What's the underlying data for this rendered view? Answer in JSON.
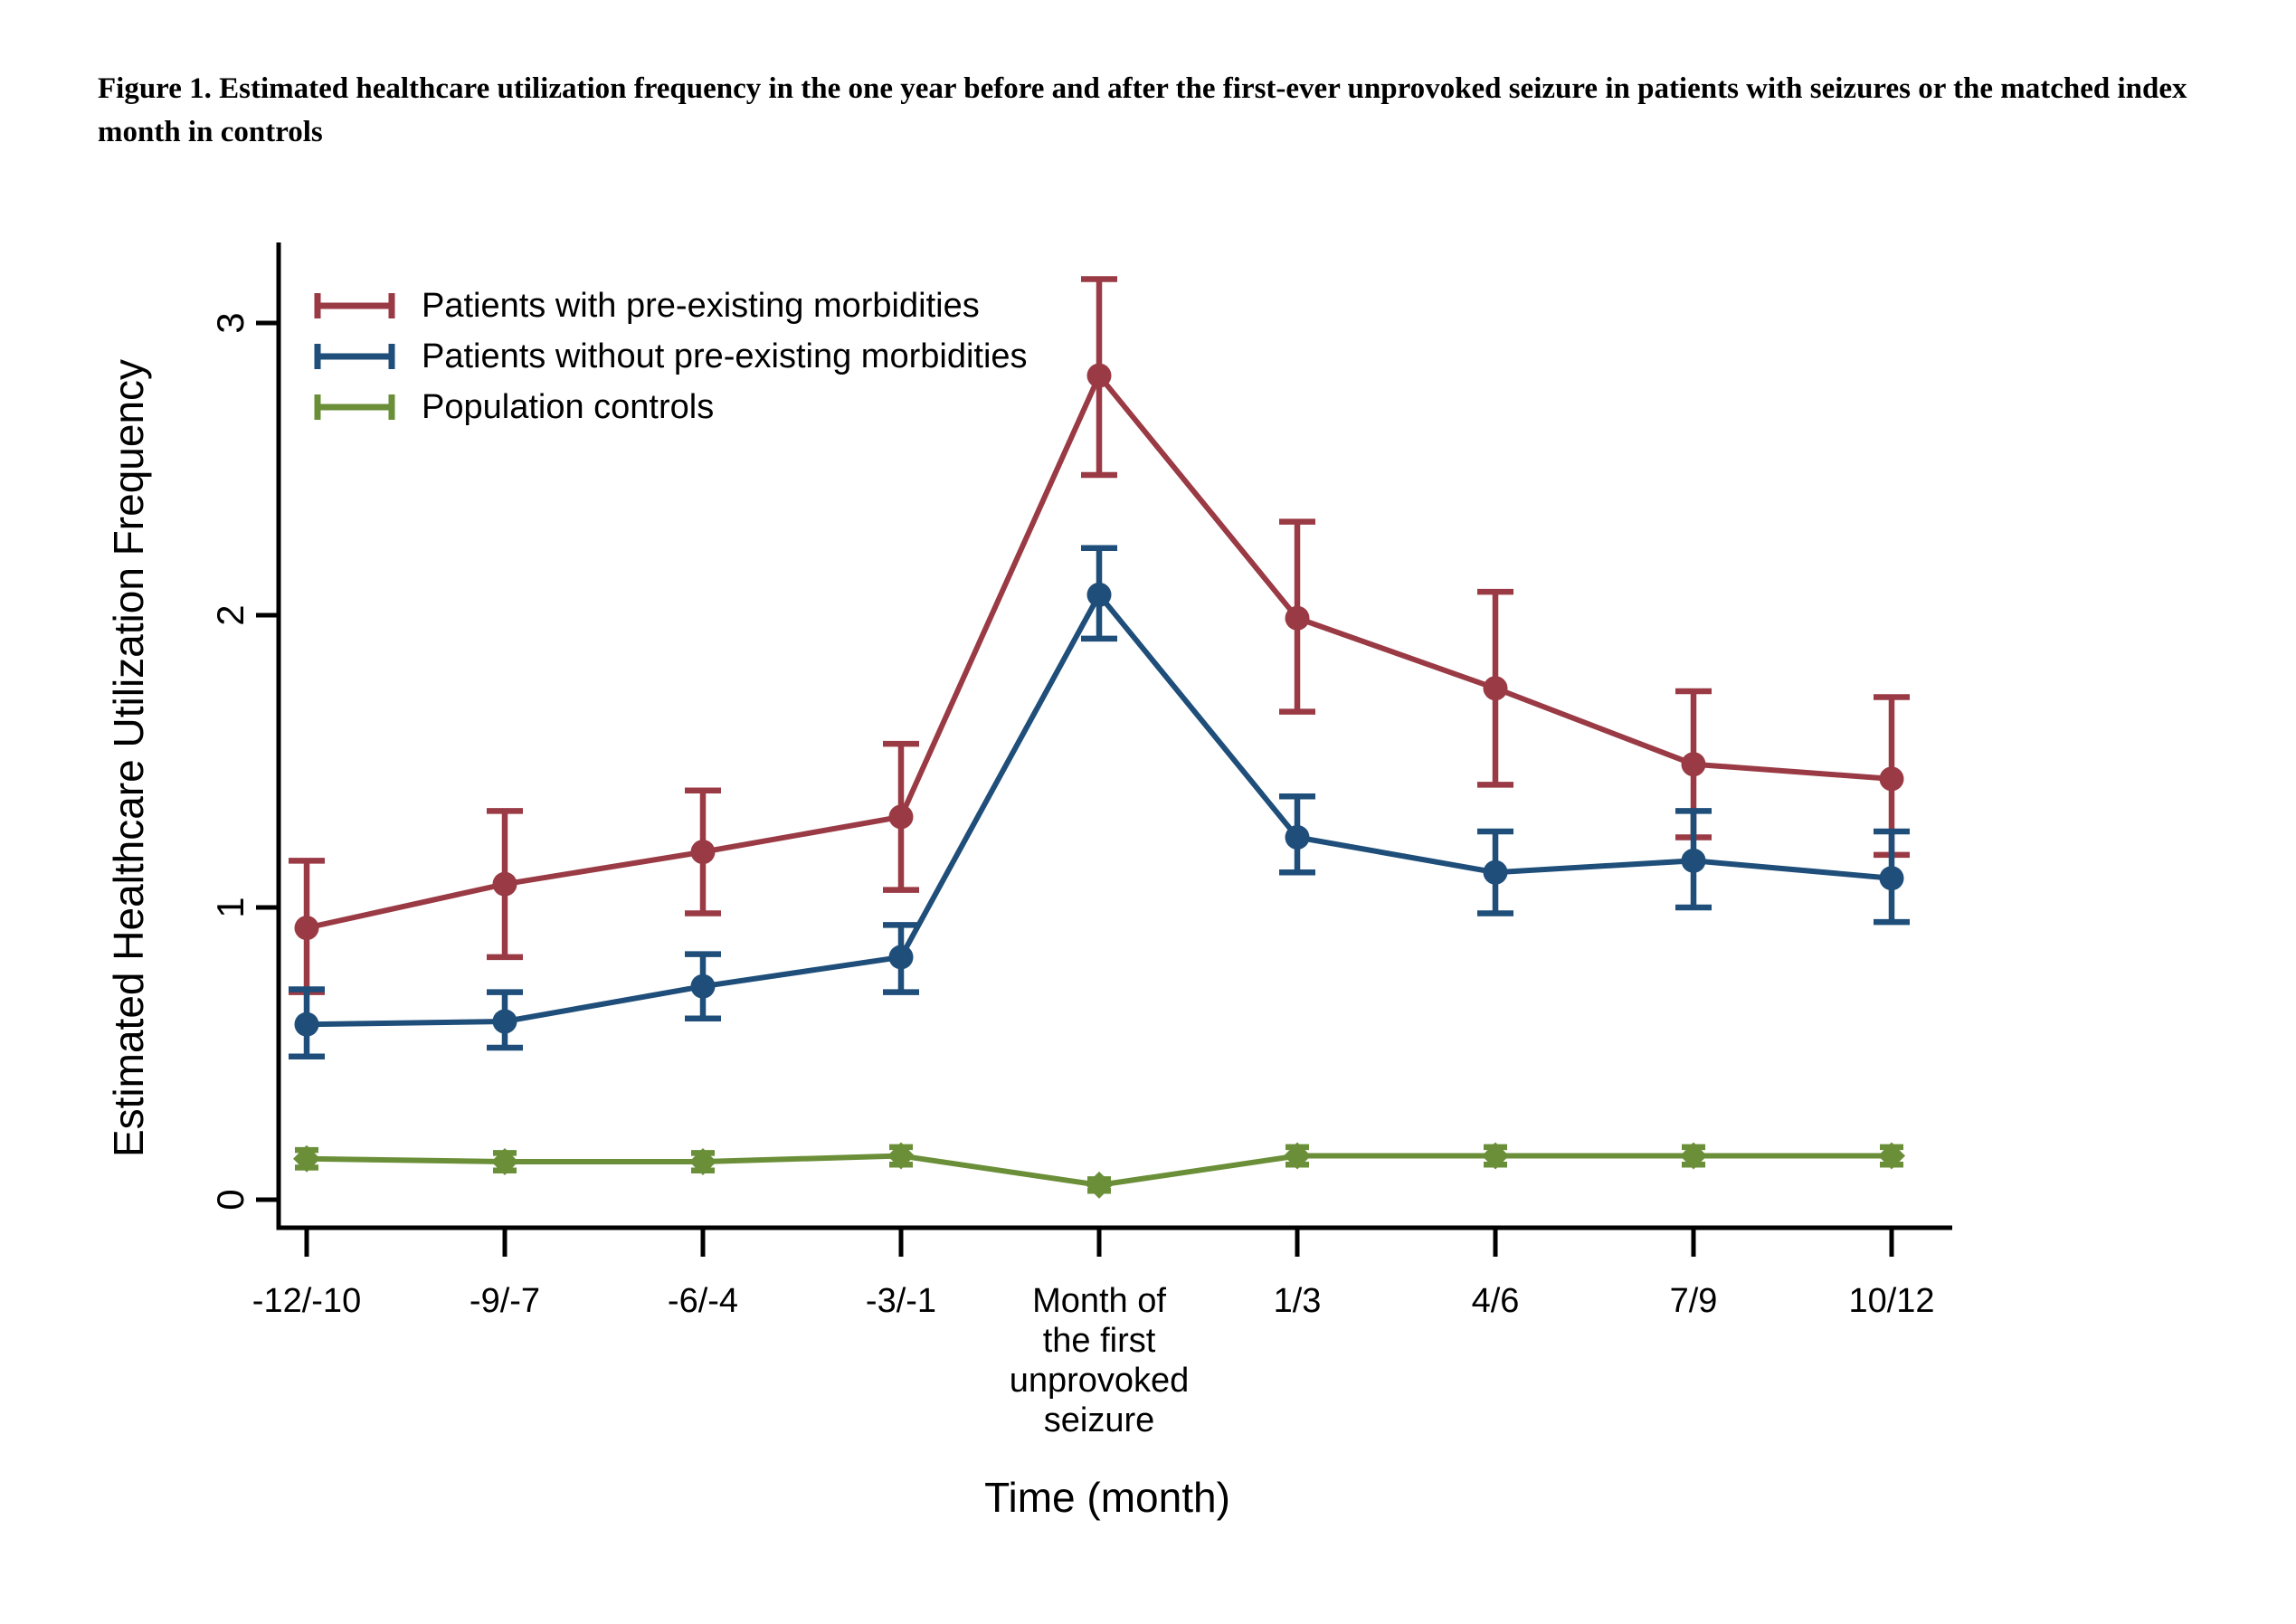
{
  "figure": {
    "title": "Figure 1. Estimated healthcare utilization frequency in the one year before and after the first-ever unprovoked seizure in patients with seizures or the matched index month in controls"
  },
  "chart_data": {
    "type": "line",
    "title": "Figure 1. Estimated healthcare utilization frequency in the one year before and after the first-ever unprovoked seizure in patients with seizures or the matched index month in controls",
    "xlabel": "Time (month)",
    "ylabel": "Estimated Healthcare Utilization Frequency",
    "ylim": [
      0,
      3.3
    ],
    "yticks": [
      0,
      1,
      2,
      3
    ],
    "grid": false,
    "legend_position": "top-left-inside",
    "error_bars": true,
    "categories": [
      "-12/-10",
      "-9/-7",
      "-6/-4",
      "-3/-1",
      "Month of\nthe first\nunprovoked\nseizure",
      "1/3",
      "4/6",
      "7/9",
      "10/12"
    ],
    "series": [
      {
        "name": "Patients with pre-existing morbidities",
        "color": "#9a3a44",
        "marker": "circle",
        "values": [
          0.93,
          1.08,
          1.19,
          1.31,
          2.82,
          1.99,
          1.75,
          1.49,
          1.44
        ],
        "ci_low": [
          0.71,
          0.83,
          0.98,
          1.06,
          2.48,
          1.67,
          1.42,
          1.24,
          1.18
        ],
        "ci_high": [
          1.16,
          1.33,
          1.4,
          1.56,
          3.15,
          2.32,
          2.08,
          1.74,
          1.72
        ]
      },
      {
        "name": "Patients without pre-existing morbidities",
        "color": "#1e4e79",
        "marker": "circle",
        "values": [
          0.6,
          0.61,
          0.73,
          0.83,
          2.07,
          1.24,
          1.12,
          1.16,
          1.1
        ],
        "ci_low": [
          0.49,
          0.52,
          0.62,
          0.71,
          1.92,
          1.12,
          0.98,
          1.0,
          0.95
        ],
        "ci_high": [
          0.72,
          0.71,
          0.84,
          0.94,
          2.23,
          1.38,
          1.26,
          1.33,
          1.26
        ]
      },
      {
        "name": "Population controls",
        "color": "#6a8f38",
        "marker": "diamond",
        "values": [
          0.14,
          0.13,
          0.13,
          0.15,
          0.05,
          0.15,
          0.15,
          0.15,
          0.15
        ],
        "ci_low": [
          0.11,
          0.1,
          0.1,
          0.12,
          0.03,
          0.12,
          0.12,
          0.12,
          0.12
        ],
        "ci_high": [
          0.17,
          0.16,
          0.16,
          0.18,
          0.07,
          0.18,
          0.18,
          0.18,
          0.18
        ]
      }
    ]
  }
}
